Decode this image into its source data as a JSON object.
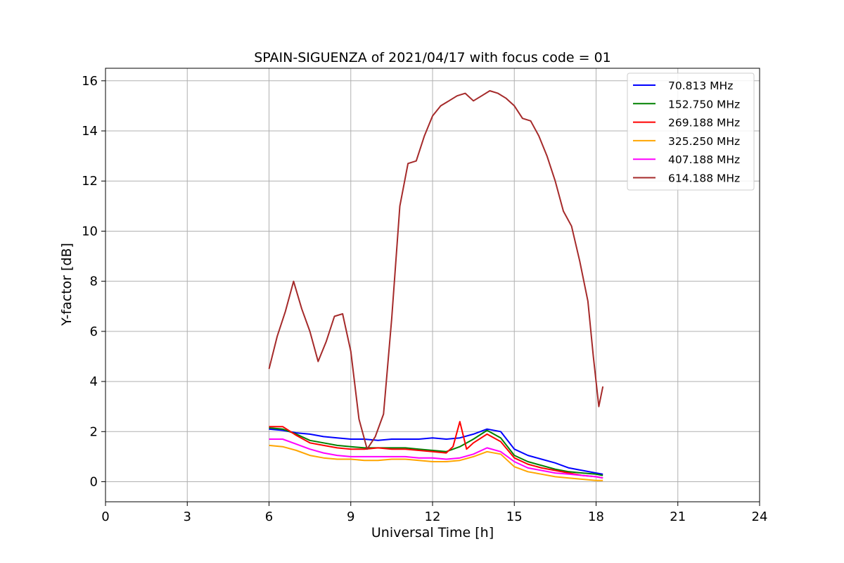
{
  "chart_data": {
    "type": "line",
    "title": "SPAIN-SIGUENZA of 2021/04/17 with focus code = 01",
    "xlabel": "Universal Time [h]",
    "ylabel": "Y-factor [dB]",
    "xlim": [
      0,
      24
    ],
    "ylim": [
      -0.8,
      16.5
    ],
    "xticks": [
      0,
      3,
      6,
      9,
      12,
      15,
      18,
      21,
      24
    ],
    "xtick_labels": [
      "0",
      "3",
      "6",
      "9",
      "12",
      "15",
      "18",
      "21",
      "24"
    ],
    "yticks": [
      0,
      2,
      4,
      6,
      8,
      10,
      12,
      14,
      16
    ],
    "ytick_labels": [
      "0",
      "2",
      "4",
      "6",
      "8",
      "10",
      "12",
      "14",
      "16"
    ],
    "grid": true,
    "legend_position": "top-right",
    "series": [
      {
        "name": " 70.813 MHz",
        "color": "#0000ff",
        "x": [
          6.0,
          6.5,
          7.0,
          7.5,
          8.0,
          8.5,
          9.0,
          9.5,
          10.0,
          10.5,
          11.0,
          11.5,
          12.0,
          12.5,
          13.0,
          13.5,
          14.0,
          14.5,
          15.0,
          15.5,
          16.0,
          16.5,
          17.0,
          17.5,
          18.0,
          18.25
        ],
        "y": [
          2.1,
          2.05,
          1.95,
          1.9,
          1.8,
          1.75,
          1.7,
          1.7,
          1.65,
          1.7,
          1.7,
          1.7,
          1.75,
          1.7,
          1.75,
          1.9,
          2.1,
          2.0,
          1.3,
          1.05,
          0.9,
          0.75,
          0.55,
          0.45,
          0.35,
          0.3
        ]
      },
      {
        "name": "152.750 MHz",
        "color": "#008000",
        "x": [
          6.0,
          6.5,
          7.0,
          7.5,
          8.0,
          8.5,
          9.0,
          9.5,
          10.0,
          10.5,
          11.0,
          11.5,
          12.0,
          12.5,
          13.0,
          13.5,
          14.0,
          14.5,
          15.0,
          15.5,
          16.0,
          16.5,
          17.0,
          17.5,
          18.0,
          18.25
        ],
        "y": [
          2.15,
          2.1,
          1.9,
          1.65,
          1.55,
          1.45,
          1.4,
          1.35,
          1.35,
          1.35,
          1.35,
          1.3,
          1.25,
          1.2,
          1.4,
          1.7,
          2.05,
          1.75,
          1.05,
          0.8,
          0.65,
          0.5,
          0.4,
          0.35,
          0.3,
          0.25
        ]
      },
      {
        "name": "269.188 MHz",
        "color": "#ff0000",
        "x": [
          6.0,
          6.5,
          7.0,
          7.5,
          8.0,
          8.5,
          9.0,
          9.5,
          10.0,
          10.5,
          11.0,
          11.5,
          12.0,
          12.5,
          12.75,
          13.0,
          13.25,
          13.5,
          14.0,
          14.5,
          15.0,
          15.5,
          16.0,
          16.5,
          17.0,
          17.5,
          18.0,
          18.25
        ],
        "y": [
          2.2,
          2.2,
          1.85,
          1.55,
          1.45,
          1.35,
          1.3,
          1.3,
          1.35,
          1.3,
          1.3,
          1.25,
          1.2,
          1.15,
          1.4,
          2.4,
          1.3,
          1.55,
          1.9,
          1.6,
          0.95,
          0.7,
          0.55,
          0.45,
          0.35,
          0.25,
          0.2,
          0.15
        ]
      },
      {
        "name": "325.250 MHz",
        "color": "#ffa500",
        "x": [
          6.0,
          6.5,
          7.0,
          7.5,
          8.0,
          8.5,
          9.0,
          9.5,
          10.0,
          10.5,
          11.0,
          11.5,
          12.0,
          12.5,
          13.0,
          13.5,
          14.0,
          14.5,
          15.0,
          15.5,
          16.0,
          16.5,
          17.0,
          17.5,
          18.0,
          18.25
        ],
        "y": [
          1.45,
          1.4,
          1.25,
          1.05,
          0.95,
          0.9,
          0.9,
          0.85,
          0.85,
          0.9,
          0.9,
          0.85,
          0.8,
          0.8,
          0.85,
          1.0,
          1.2,
          1.1,
          0.6,
          0.4,
          0.3,
          0.2,
          0.15,
          0.1,
          0.05,
          0.05
        ]
      },
      {
        "name": "407.188 MHz",
        "color": "#ff00ff",
        "x": [
          6.0,
          6.5,
          7.0,
          7.5,
          8.0,
          8.5,
          9.0,
          9.5,
          10.0,
          10.5,
          11.0,
          11.5,
          12.0,
          12.5,
          13.0,
          13.5,
          14.0,
          14.5,
          15.0,
          15.5,
          16.0,
          16.5,
          17.0,
          17.5,
          18.0,
          18.25
        ],
        "y": [
          1.7,
          1.7,
          1.5,
          1.3,
          1.15,
          1.05,
          1.0,
          1.0,
          1.0,
          1.0,
          1.0,
          0.95,
          0.95,
          0.9,
          0.95,
          1.1,
          1.35,
          1.2,
          0.8,
          0.55,
          0.45,
          0.35,
          0.3,
          0.25,
          0.2,
          0.15
        ]
      },
      {
        "name": "614.188 MHz",
        "color": "#a52a2a",
        "x": [
          6.0,
          6.3,
          6.6,
          6.9,
          7.2,
          7.5,
          7.8,
          8.1,
          8.4,
          8.7,
          9.0,
          9.3,
          9.6,
          9.9,
          10.2,
          10.5,
          10.8,
          11.1,
          11.4,
          11.7,
          12.0,
          12.3,
          12.6,
          12.9,
          13.2,
          13.5,
          13.8,
          14.1,
          14.4,
          14.7,
          15.0,
          15.3,
          15.6,
          15.9,
          16.2,
          16.5,
          16.8,
          17.1,
          17.4,
          17.7,
          17.9,
          18.1,
          18.25
        ],
        "y": [
          4.5,
          5.8,
          6.8,
          8.0,
          6.9,
          6.0,
          4.8,
          5.6,
          6.6,
          6.7,
          5.2,
          2.5,
          1.3,
          1.8,
          2.7,
          6.5,
          11.0,
          12.7,
          12.8,
          13.8,
          14.6,
          15.0,
          15.2,
          15.4,
          15.5,
          15.2,
          15.4,
          15.6,
          15.5,
          15.3,
          15.0,
          14.5,
          14.4,
          13.8,
          13.0,
          12.0,
          10.8,
          10.2,
          8.8,
          7.2,
          5.0,
          3.0,
          3.8
        ]
      }
    ]
  }
}
